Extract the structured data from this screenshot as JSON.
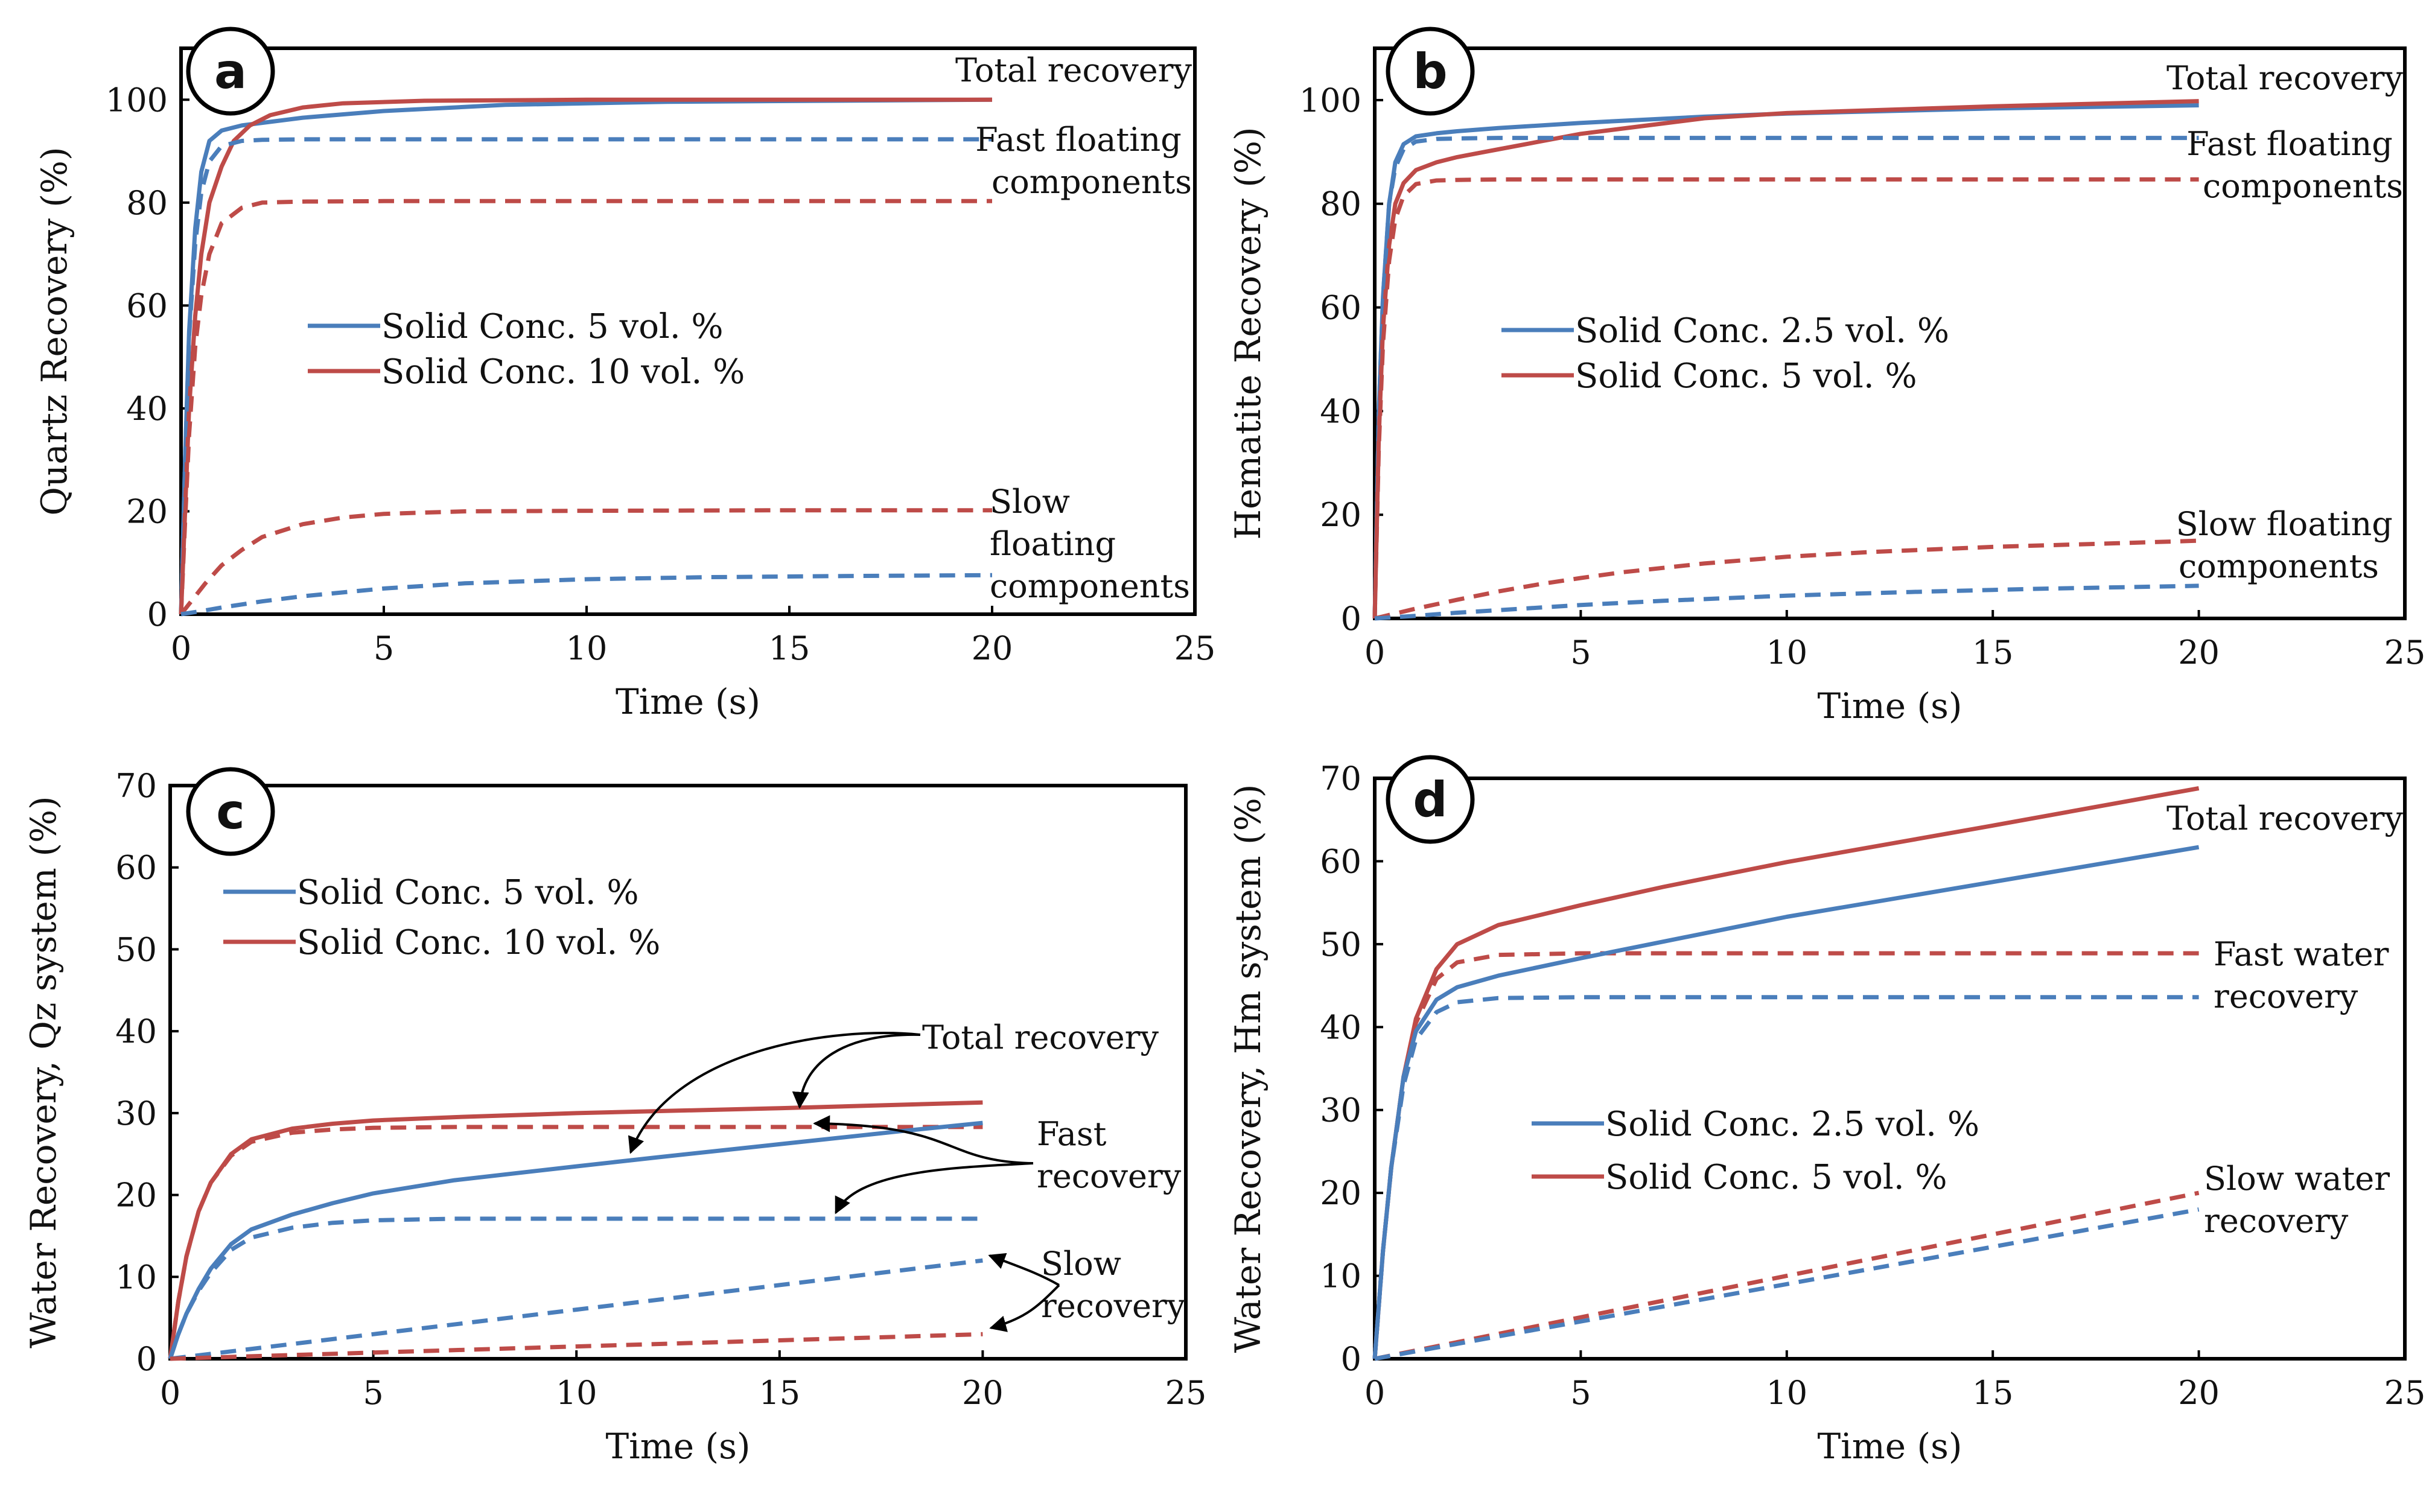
{
  "colors": {
    "blue": "#4a7ebb",
    "red": "#be4b48",
    "axis": "#000000"
  },
  "chart_data": [
    {
      "id": "a",
      "type": "line",
      "badge": "a",
      "xlabel": "Time (s)",
      "ylabel": "Quartz Recovery (%)",
      "xlim": [
        0,
        25
      ],
      "ylim": [
        0,
        110
      ],
      "xticks": [
        0,
        5,
        10,
        15,
        20,
        25
      ],
      "yticks": [
        0,
        20,
        40,
        60,
        80,
        100
      ],
      "legend": [
        "Solid Conc. 5 vol. %",
        "Solid Conc. 10 vol. %"
      ],
      "annotations": [
        {
          "lines": [
            "Total recovery"
          ]
        },
        {
          "lines": [
            "Fast floating",
            "components"
          ]
        },
        {
          "lines": [
            "Slow",
            "floating",
            "components"
          ]
        }
      ],
      "series": [
        {
          "name": "Solid Conc. 5 vol. % total",
          "color": "blue",
          "style": "solid",
          "x": [
            0,
            0.1,
            0.2,
            0.35,
            0.5,
            0.7,
            1,
            1.5,
            2,
            3,
            5,
            8,
            12,
            16,
            20
          ],
          "y": [
            0,
            30,
            55,
            75,
            86,
            92,
            94,
            95,
            95.5,
            96.5,
            97.8,
            99,
            99.6,
            99.8,
            100
          ]
        },
        {
          "name": "Solid Conc. 10 vol. % total",
          "color": "red",
          "style": "solid",
          "x": [
            0,
            0.1,
            0.2,
            0.35,
            0.5,
            0.7,
            1,
            1.3,
            1.7,
            2.2,
            3,
            4,
            6,
            10,
            15,
            20
          ],
          "y": [
            0,
            20,
            40,
            58,
            70,
            80,
            87,
            92,
            95,
            97,
            98.5,
            99.3,
            99.8,
            100,
            100,
            100
          ]
        },
        {
          "name": "Solid Conc. 5 vol. % fast",
          "color": "blue",
          "style": "dashed",
          "x": [
            0,
            0.1,
            0.2,
            0.35,
            0.5,
            0.7,
            1,
            1.5,
            2,
            3,
            5,
            10,
            15,
            20
          ],
          "y": [
            0,
            30,
            54,
            72,
            82,
            88,
            91,
            92,
            92.2,
            92.3,
            92.3,
            92.3,
            92.3,
            92.3
          ]
        },
        {
          "name": "Solid Conc. 10 vol. % fast",
          "color": "red",
          "style": "dashed",
          "x": [
            0,
            0.1,
            0.2,
            0.35,
            0.5,
            0.7,
            1,
            1.5,
            2,
            3,
            5,
            10,
            15,
            20
          ],
          "y": [
            0,
            18,
            35,
            52,
            62,
            70,
            76,
            79,
            80,
            80.2,
            80.3,
            80.3,
            80.3,
            80.3
          ]
        },
        {
          "name": "Solid Conc. 10 vol. % slow",
          "color": "red",
          "style": "dashed",
          "x": [
            0,
            0.3,
            0.6,
            1,
            1.5,
            2,
            3,
            4,
            5,
            7,
            10,
            15,
            20
          ],
          "y": [
            0,
            3,
            6,
            9.5,
            12.5,
            15,
            17.5,
            18.8,
            19.5,
            20,
            20.1,
            20.2,
            20.2
          ]
        },
        {
          "name": "Solid Conc. 5 vol. % slow",
          "color": "blue",
          "style": "dashed",
          "x": [
            0,
            0.5,
            1,
            2,
            3,
            5,
            7,
            10,
            13,
            16,
            20
          ],
          "y": [
            0,
            0.6,
            1.3,
            2.5,
            3.5,
            5,
            6,
            6.8,
            7.2,
            7.4,
            7.6
          ]
        }
      ]
    },
    {
      "id": "b",
      "type": "line",
      "badge": "b",
      "xlabel": "Time (s)",
      "ylabel": "Hematite Recovery (%)",
      "xlim": [
        0,
        25
      ],
      "ylim": [
        0,
        110
      ],
      "xticks": [
        0,
        5,
        10,
        15,
        20,
        25
      ],
      "yticks": [
        0,
        20,
        40,
        60,
        80,
        100
      ],
      "legend": [
        "Solid Conc. 2.5 vol. %",
        "Solid Conc. 5 vol. %"
      ],
      "annotations": [
        {
          "lines": [
            "Total recovery"
          ]
        },
        {
          "lines": [
            "Fast floating",
            "components"
          ]
        },
        {
          "lines": [
            "Slow floating",
            "components"
          ]
        }
      ],
      "series": [
        {
          "name": "Solid Conc. 2.5 vol. % total",
          "color": "blue",
          "style": "solid",
          "x": [
            0,
            0.1,
            0.2,
            0.35,
            0.5,
            0.7,
            1,
            1.5,
            2,
            3,
            5,
            8,
            10,
            15,
            20
          ],
          "y": [
            0,
            40,
            62,
            80,
            88,
            91.5,
            93,
            93.6,
            94,
            94.6,
            95.6,
            96.8,
            97.4,
            98.4,
            99
          ]
        },
        {
          "name": "Solid Conc. 5 vol. % total",
          "color": "red",
          "style": "solid",
          "x": [
            0,
            0.1,
            0.2,
            0.35,
            0.5,
            0.7,
            1,
            1.5,
            2,
            3,
            5,
            8,
            10,
            15,
            20
          ],
          "y": [
            0,
            35,
            56,
            72,
            80,
            84,
            86.5,
            88,
            89,
            90.5,
            93.5,
            96.5,
            97.5,
            98.8,
            99.8
          ]
        },
        {
          "name": "Solid Conc. 2.5 vol. % fast",
          "color": "blue",
          "style": "dashed",
          "x": [
            0,
            0.1,
            0.2,
            0.35,
            0.5,
            0.7,
            1,
            1.5,
            2,
            3,
            5,
            10,
            15,
            20
          ],
          "y": [
            0,
            40,
            62,
            80,
            87,
            90.5,
            92,
            92.5,
            92.6,
            92.7,
            92.7,
            92.7,
            92.7,
            92.7
          ]
        },
        {
          "name": "Solid Conc. 5 vol. % fast",
          "color": "red",
          "style": "dashed",
          "x": [
            0,
            0.1,
            0.2,
            0.35,
            0.5,
            0.7,
            1,
            1.5,
            2,
            3,
            5,
            10,
            15,
            20
          ],
          "y": [
            0,
            33,
            53,
            69,
            77,
            81.5,
            83.8,
            84.5,
            84.6,
            84.7,
            84.7,
            84.7,
            84.7,
            84.7
          ]
        },
        {
          "name": "Solid Conc. 5 vol. % slow",
          "color": "red",
          "style": "dashed",
          "x": [
            0,
            1,
            2,
            3,
            4,
            5,
            6,
            8,
            10,
            12,
            15,
            18,
            20
          ],
          "y": [
            0,
            1.9,
            3.6,
            5.2,
            6.6,
            7.8,
            8.9,
            10.6,
            11.9,
            12.8,
            13.8,
            14.5,
            15
          ]
        },
        {
          "name": "Solid Conc. 2.5 vol. % slow",
          "color": "blue",
          "style": "dashed",
          "x": [
            0,
            1,
            2,
            3,
            5,
            7,
            10,
            13,
            16,
            20
          ],
          "y": [
            0,
            0.5,
            1.1,
            1.6,
            2.6,
            3.4,
            4.4,
            5.1,
            5.7,
            6.3
          ]
        }
      ]
    },
    {
      "id": "c",
      "type": "line",
      "badge": "c",
      "xlabel": "Time (s)",
      "ylabel": "Water Recovery,  Qz system (%)",
      "xlim": [
        0,
        25
      ],
      "ylim": [
        0,
        70
      ],
      "xticks": [
        0,
        5,
        10,
        15,
        20,
        25
      ],
      "yticks": [
        0,
        10,
        20,
        30,
        40,
        50,
        60,
        70
      ],
      "legend": [
        "Solid Conc. 5 vol. %",
        "Solid Conc. 10 vol. %"
      ],
      "annotations": [
        {
          "lines": [
            "Total recovery"
          ]
        },
        {
          "lines": [
            "Fast",
            "recovery"
          ]
        },
        {
          "lines": [
            "Slow",
            "recovery"
          ]
        }
      ],
      "series": [
        {
          "name": "Solid Conc. 10 vol. % total",
          "color": "red",
          "style": "solid",
          "x": [
            0,
            0.2,
            0.4,
            0.7,
            1,
            1.5,
            2,
            3,
            4,
            5,
            7,
            10,
            15,
            20
          ],
          "y": [
            0,
            7,
            12.5,
            18,
            21.5,
            25,
            26.8,
            28.1,
            28.7,
            29.1,
            29.5,
            30,
            30.6,
            31.3
          ]
        },
        {
          "name": "Solid Conc. 10 vol. % fast",
          "color": "red",
          "style": "dashed",
          "x": [
            0,
            0.2,
            0.4,
            0.7,
            1,
            1.5,
            2,
            3,
            4,
            5,
            7,
            10,
            15,
            20
          ],
          "y": [
            0,
            7,
            12.5,
            18,
            21.5,
            24.8,
            26.5,
            27.6,
            28,
            28.2,
            28.3,
            28.3,
            28.3,
            28.3
          ]
        },
        {
          "name": "Solid Conc. 5 vol. % total",
          "color": "blue",
          "style": "solid",
          "x": [
            0,
            0.2,
            0.4,
            0.7,
            1,
            1.5,
            2,
            3,
            4,
            5,
            7,
            10,
            12,
            15,
            18,
            20
          ],
          "y": [
            0,
            3,
            5.5,
            8.5,
            11,
            14,
            15.8,
            17.6,
            19,
            20.2,
            21.8,
            23.5,
            24.6,
            26.2,
            27.8,
            28.8
          ]
        },
        {
          "name": "Solid Conc. 5 vol. % fast",
          "color": "blue",
          "style": "dashed",
          "x": [
            0,
            0.2,
            0.4,
            0.7,
            1,
            1.5,
            2,
            3,
            4,
            5,
            7,
            10,
            15,
            20
          ],
          "y": [
            0,
            3,
            5.5,
            8.3,
            10.5,
            13.3,
            14.8,
            16,
            16.6,
            16.9,
            17.1,
            17.1,
            17.1,
            17.1
          ]
        },
        {
          "name": "Solid Conc. 5 vol. % slow",
          "color": "blue",
          "style": "dashed",
          "x": [
            0,
            5,
            10,
            15,
            20
          ],
          "y": [
            0,
            3,
            6,
            9,
            12
          ]
        },
        {
          "name": "Solid Conc. 10 vol. % slow",
          "color": "red",
          "style": "dashed",
          "x": [
            0,
            5,
            10,
            15,
            20
          ],
          "y": [
            0,
            0.75,
            1.5,
            2.25,
            3
          ]
        }
      ]
    },
    {
      "id": "d",
      "type": "line",
      "badge": "d",
      "xlabel": "Time (s)",
      "ylabel": "Water Recovery, Hm system (%)",
      "xlim": [
        0,
        25
      ],
      "ylim": [
        0,
        70
      ],
      "xticks": [
        0,
        5,
        10,
        15,
        20,
        25
      ],
      "yticks": [
        0,
        10,
        20,
        30,
        40,
        50,
        60,
        70
      ],
      "legend": [
        "Solid Conc. 2.5 vol. %",
        "Solid Conc. 5 vol. %"
      ],
      "annotations": [
        {
          "lines": [
            "Total recovery"
          ]
        },
        {
          "lines": [
            "Fast water",
            "recovery"
          ]
        },
        {
          "lines": [
            "Slow water",
            "recovery"
          ]
        }
      ],
      "series": [
        {
          "name": "Solid Conc. 5 vol. % total",
          "color": "red",
          "style": "solid",
          "x": [
            0,
            0.2,
            0.4,
            0.7,
            1,
            1.5,
            2,
            3,
            5,
            7,
            10,
            15,
            20
          ],
          "y": [
            0,
            13,
            23,
            34,
            41,
            47,
            50,
            52.3,
            54.7,
            56.9,
            59.9,
            64.3,
            68.8
          ]
        },
        {
          "name": "Solid Conc. 5 vol. % fast",
          "color": "red",
          "style": "dashed",
          "x": [
            0,
            0.2,
            0.4,
            0.7,
            1,
            1.5,
            2,
            3,
            5,
            10,
            15,
            20
          ],
          "y": [
            0,
            13,
            23,
            34,
            40.5,
            45.8,
            47.8,
            48.7,
            48.9,
            48.9,
            48.9,
            48.9
          ]
        },
        {
          "name": "Solid Conc. 2.5 vol. % total",
          "color": "blue",
          "style": "solid",
          "x": [
            0,
            0.2,
            0.4,
            0.7,
            1,
            1.5,
            2,
            3,
            5,
            7,
            10,
            15,
            20
          ],
          "y": [
            0,
            13,
            23,
            34,
            39.5,
            43.3,
            44.8,
            46.2,
            48.3,
            50.3,
            53.3,
            57.5,
            61.7
          ]
        },
        {
          "name": "Solid Conc. 2.5 vol. % fast",
          "color": "blue",
          "style": "dashed",
          "x": [
            0,
            0.2,
            0.4,
            0.7,
            1,
            1.5,
            2,
            3,
            5,
            10,
            15,
            20
          ],
          "y": [
            0,
            13,
            23,
            33,
            38.5,
            41.8,
            43,
            43.5,
            43.6,
            43.6,
            43.6,
            43.6
          ]
        },
        {
          "name": "Solid Conc. 5 vol. % slow",
          "color": "red",
          "style": "dashed",
          "x": [
            0,
            5,
            10,
            15,
            20
          ],
          "y": [
            0,
            5,
            10,
            15,
            20
          ]
        },
        {
          "name": "Solid Conc. 2.5 vol. % slow",
          "color": "blue",
          "style": "dashed",
          "x": [
            0,
            5,
            10,
            15,
            20
          ],
          "y": [
            0,
            4.5,
            9,
            13.5,
            18
          ]
        }
      ]
    }
  ]
}
